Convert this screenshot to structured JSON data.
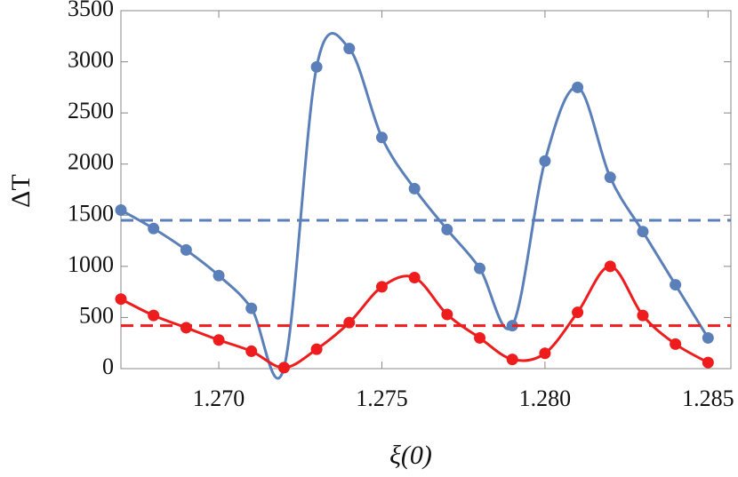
{
  "chart_data": {
    "type": "line",
    "xlabel": "ξ(0)",
    "ylabel": "ΔT",
    "x": [
      1.267,
      1.268,
      1.269,
      1.27,
      1.271,
      1.272,
      1.273,
      1.274,
      1.275,
      1.276,
      1.277,
      1.278,
      1.279,
      1.28,
      1.281,
      1.282,
      1.283,
      1.284,
      1.285
    ],
    "series": [
      {
        "color": "#5b7fb8",
        "values": [
          1550,
          1370,
          1160,
          910,
          590,
          10,
          2950,
          3130,
          2260,
          1760,
          1360,
          980,
          420,
          2030,
          2750,
          1870,
          1340,
          820,
          300
        ],
        "mean": 1450
      },
      {
        "color": "#ee1c1c",
        "values": [
          680,
          520,
          400,
          280,
          170,
          10,
          190,
          450,
          800,
          890,
          530,
          300,
          90,
          150,
          550,
          1000,
          520,
          240,
          60
        ],
        "mean": 420
      }
    ],
    "xlim": [
      1.267,
      1.2857
    ],
    "ylim": [
      0,
      3500
    ],
    "xticks": [
      {
        "value": 1.27,
        "label": "1.270"
      },
      {
        "value": 1.275,
        "label": "1.275"
      },
      {
        "value": 1.28,
        "label": "1.280"
      },
      {
        "value": 1.285,
        "label": "1.285"
      }
    ],
    "yticks": [
      0,
      500,
      1000,
      1500,
      2000,
      2500,
      3000,
      3500
    ]
  }
}
